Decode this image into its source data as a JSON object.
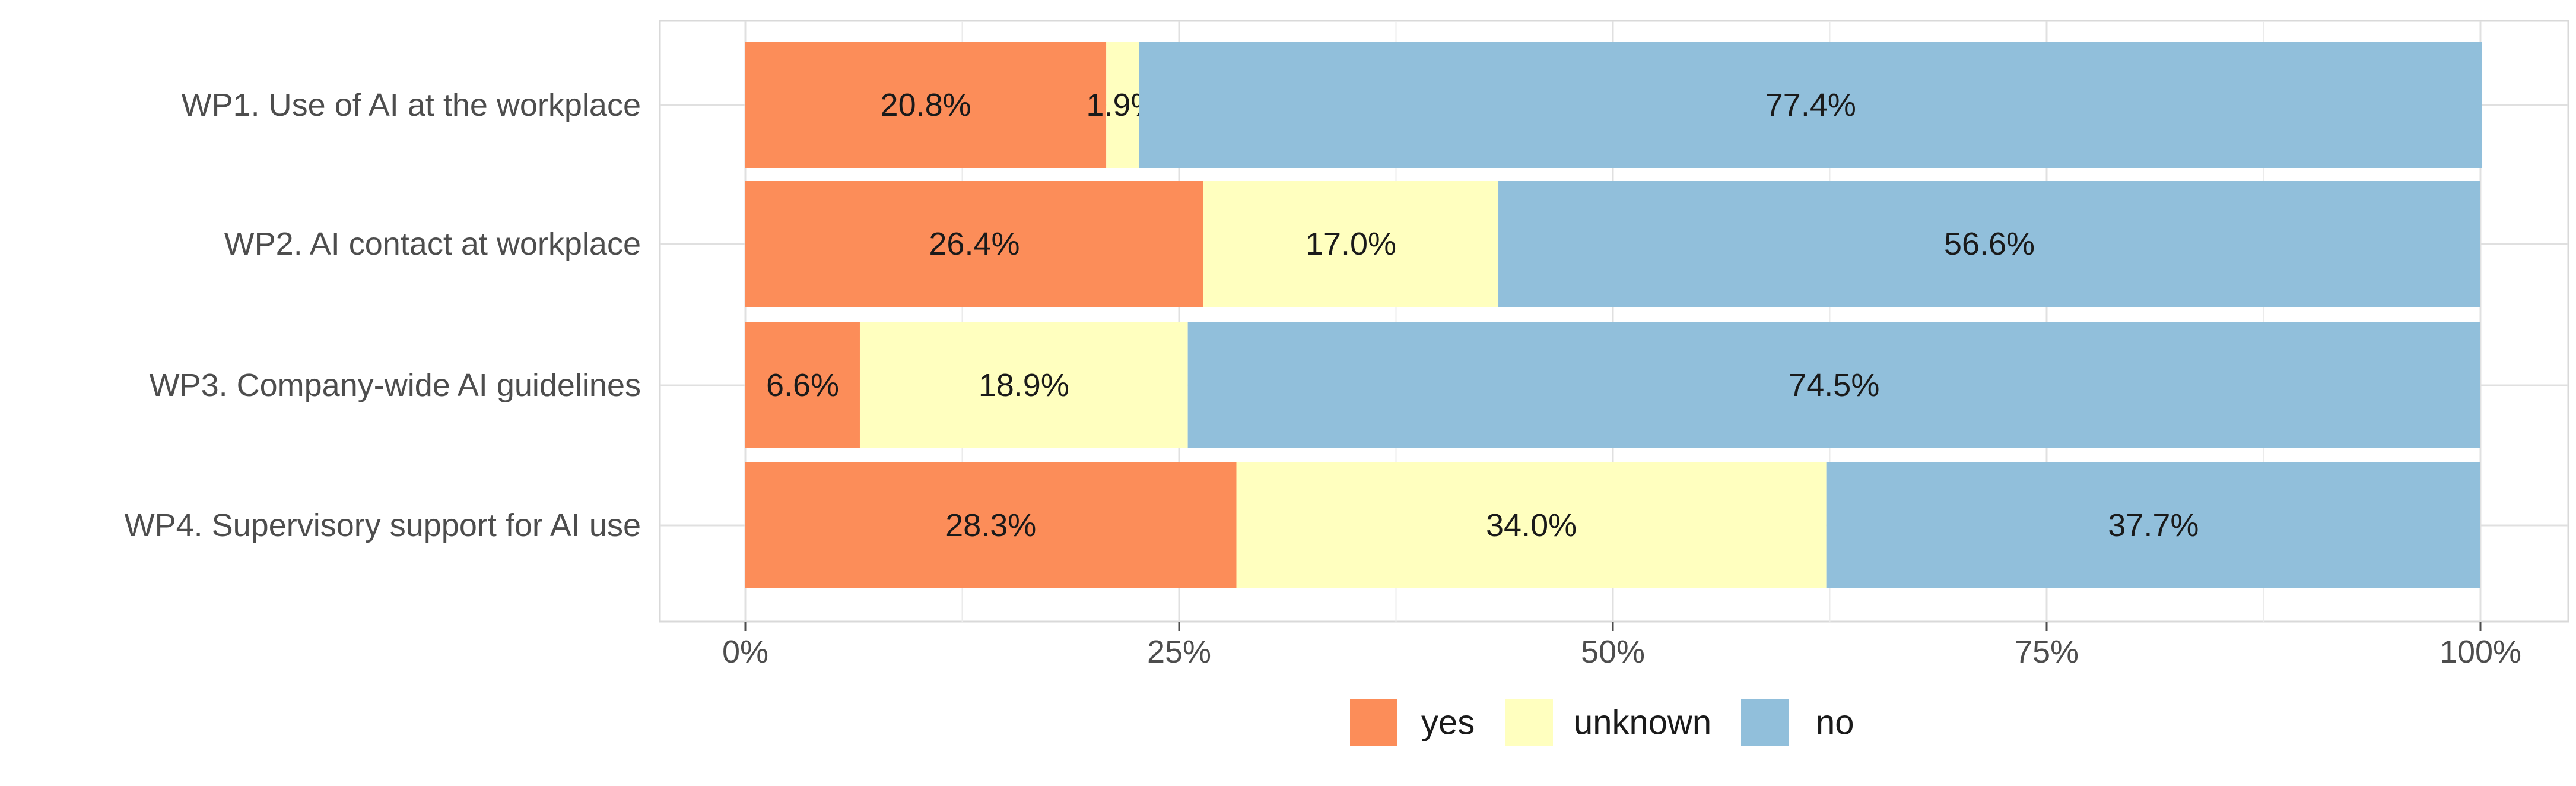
{
  "chart_data": {
    "type": "bar",
    "orientation": "horizontal",
    "stacked": true,
    "categories": [
      "WP1. Use of AI at the workplace",
      "WP2. AI contact at workplace",
      "WP3. Company-wide AI guidelines",
      "WP4. Supervisory support for AI use"
    ],
    "series": [
      {
        "name": "yes",
        "color": "#fc8d59",
        "values": [
          20.8,
          26.4,
          6.6,
          28.3
        ],
        "labels": [
          "20.8%",
          "26.4%",
          "6.6%",
          "28.3%"
        ]
      },
      {
        "name": "unknown",
        "color": "#ffffbf",
        "values": [
          1.9,
          17.0,
          18.9,
          34.0
        ],
        "labels": [
          "1.9%",
          "17.0%",
          "18.9%",
          "34.0%"
        ]
      },
      {
        "name": "no",
        "color": "#91bfdb",
        "values": [
          77.4,
          56.6,
          74.5,
          37.7
        ],
        "labels": [
          "77.4%",
          "56.6%",
          "74.5%",
          "37.7%"
        ]
      }
    ],
    "xlim": [
      0,
      100
    ],
    "xticks": [
      0,
      25,
      50,
      75,
      100
    ],
    "xtick_labels": [
      "0%",
      "25%",
      "50%",
      "75%",
      "100%"
    ],
    "title": "",
    "xlabel": "",
    "ylabel": "",
    "grid": true,
    "legend": {
      "position": "bottom",
      "entries": [
        "yes",
        "unknown",
        "no"
      ]
    }
  }
}
